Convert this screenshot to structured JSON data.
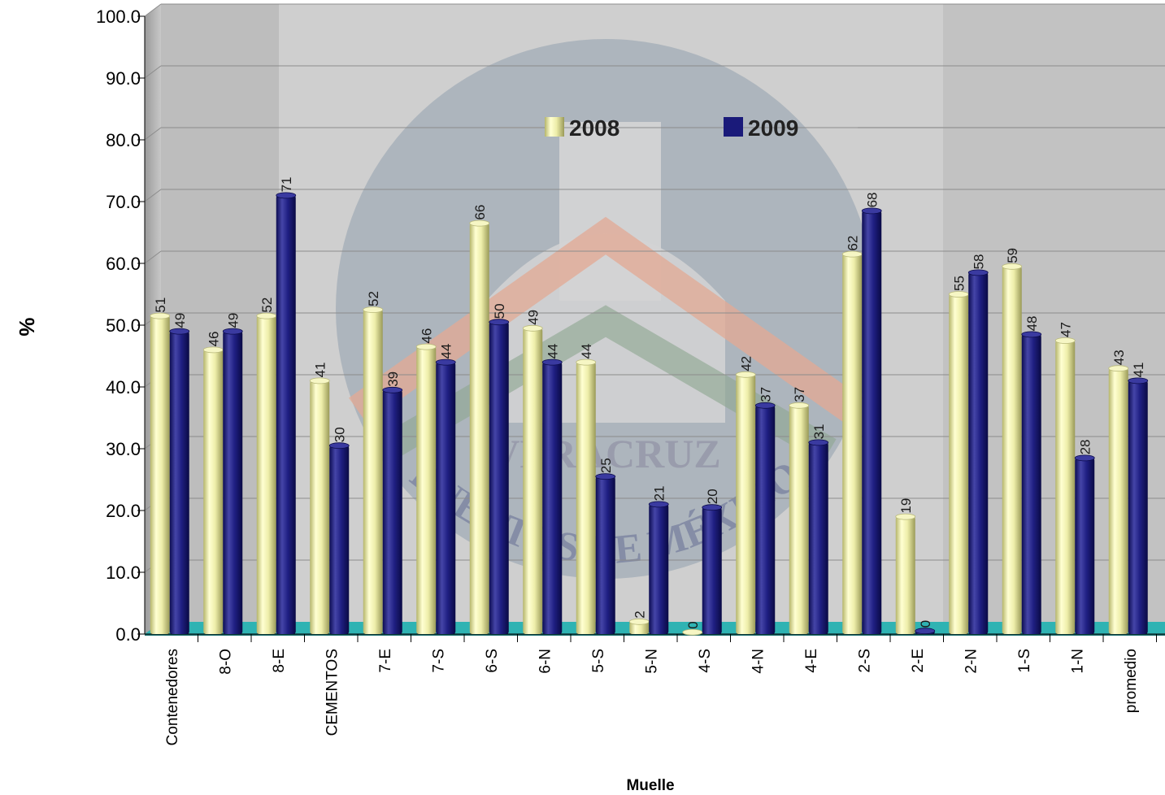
{
  "chart_data": {
    "type": "bar",
    "title": "",
    "xlabel": "Muelle",
    "ylabel": "%",
    "ylim": [
      0,
      100
    ],
    "yticks": [
      "0.0",
      "10.0",
      "20.0",
      "30.0",
      "40.0",
      "50.0",
      "60.0",
      "70.0",
      "80.0",
      "90.0",
      "100.0"
    ],
    "grid": true,
    "legend_position": "top-center",
    "categories": [
      "Contenedores",
      "8-O",
      "8-E",
      "CEMENTOS",
      "7-E",
      "7-S",
      "6-S",
      "6-N",
      "5-S",
      "5-N",
      "4-S",
      "4-N",
      "4-E",
      "2-S",
      "2-E",
      "2-N",
      "1-S",
      "1-N",
      "promedio"
    ],
    "series": [
      {
        "name": "2008",
        "color": "#eeeeaa",
        "values": [
          51.5,
          46,
          51.5,
          41,
          52.5,
          46.5,
          66.5,
          49.5,
          44,
          2,
          0.3,
          42,
          37,
          61.5,
          19,
          55,
          59.5,
          47.5,
          43
        ],
        "labels": [
          "51",
          "46",
          "52",
          "41",
          "52",
          "46",
          "66",
          "49",
          "44",
          "2",
          "0",
          "42",
          "37",
          "62",
          "19",
          "55",
          "59",
          "47",
          "43"
        ]
      },
      {
        "name": "2009",
        "color": "#1a1a7a",
        "values": [
          49,
          49,
          71,
          30.5,
          39.5,
          44,
          50.5,
          44,
          25.5,
          21,
          20.5,
          37,
          31,
          68.5,
          0.5,
          58.5,
          48.5,
          28.5,
          41
        ],
        "labels": [
          "49",
          "49",
          "71",
          "30",
          "39",
          "44",
          "50",
          "44",
          "25",
          "21",
          "20",
          "37",
          "31",
          "68",
          "0",
          "58",
          "48",
          "28",
          "41"
        ]
      }
    ]
  },
  "watermark": {
    "top_text": "VERACRUZ",
    "bottom_text": "PUERTOS DE MÉXICO",
    "registered_mark": "®"
  }
}
